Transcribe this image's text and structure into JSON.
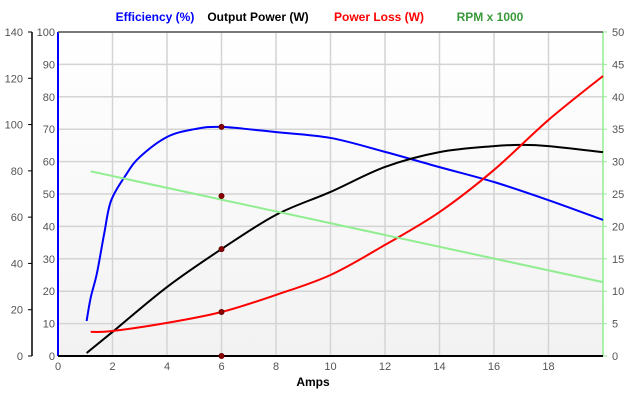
{
  "chart_data": {
    "type": "line",
    "xlabel": "Amps",
    "xlim": [
      0,
      20
    ],
    "x_ticks": [
      0,
      2,
      4,
      6,
      8,
      10,
      12,
      14,
      16,
      18
    ],
    "axes": {
      "left_outer": {
        "range": [
          0,
          140
        ],
        "ticks": [
          0,
          20,
          40,
          60,
          80,
          100,
          120,
          140
        ],
        "color": "#000000"
      },
      "left_inner": {
        "range": [
          0,
          100
        ],
        "ticks": [
          0,
          10,
          20,
          30,
          40,
          50,
          60,
          70,
          80,
          90,
          100
        ],
        "color": "#0000ff"
      },
      "right": {
        "range": [
          0,
          50
        ],
        "ticks": [
          0,
          5,
          10,
          15,
          20,
          25,
          30,
          35,
          40,
          45,
          50
        ],
        "color": "#90ee90"
      }
    },
    "grid": true,
    "legend_position": "top",
    "series": [
      {
        "name": "Efficiency (%)",
        "color": "#0000ff",
        "axis": "left_inner",
        "x": [
          1.05,
          1.2,
          1.43,
          1.7,
          1.95,
          2.5,
          3,
          4,
          5,
          6,
          8,
          10,
          12,
          14,
          16,
          18,
          20
        ],
        "y": [
          10.8,
          18,
          25.6,
          38,
          48,
          56,
          61.4,
          67.6,
          70,
          70.7,
          69.1,
          67.3,
          63,
          58.3,
          53.7,
          48.1,
          42
        ]
      },
      {
        "name": "Output Power (W)",
        "color": "#000000",
        "axis": "left_outer",
        "x": [
          1.05,
          2,
          4,
          6,
          8,
          10,
          12,
          14,
          16,
          17,
          18,
          20
        ],
        "y": [
          1.3,
          10.4,
          29.8,
          46.2,
          61,
          70.9,
          81.7,
          88.1,
          90.7,
          91.2,
          90.7,
          88.1
        ]
      },
      {
        "name": "Power Loss (W)",
        "color": "#ff0000",
        "axis": "left_outer",
        "x": [
          1.2,
          2,
          4,
          6,
          8,
          10,
          12,
          14,
          16,
          18,
          20
        ],
        "y": [
          10.4,
          10.8,
          14.3,
          19,
          26.4,
          35,
          48,
          62.2,
          80.4,
          102,
          121
        ]
      },
      {
        "name": "RPM x 1000",
        "color": "#90ee90",
        "legend_color": "#3a9a3a",
        "axis": "right",
        "x": [
          1.2,
          20
        ],
        "y": [
          28.5,
          11.4
        ]
      }
    ],
    "markers": {
      "x": 6,
      "color": "#8b0000",
      "values": [
        {
          "axis": "left_inner",
          "y": 70.7
        },
        {
          "axis": "right",
          "y": 24.7
        },
        {
          "axis": "left_outer",
          "y": 46.2
        },
        {
          "axis": "left_outer",
          "y": 19
        },
        {
          "axis": "left_outer",
          "y": 0
        }
      ]
    }
  }
}
